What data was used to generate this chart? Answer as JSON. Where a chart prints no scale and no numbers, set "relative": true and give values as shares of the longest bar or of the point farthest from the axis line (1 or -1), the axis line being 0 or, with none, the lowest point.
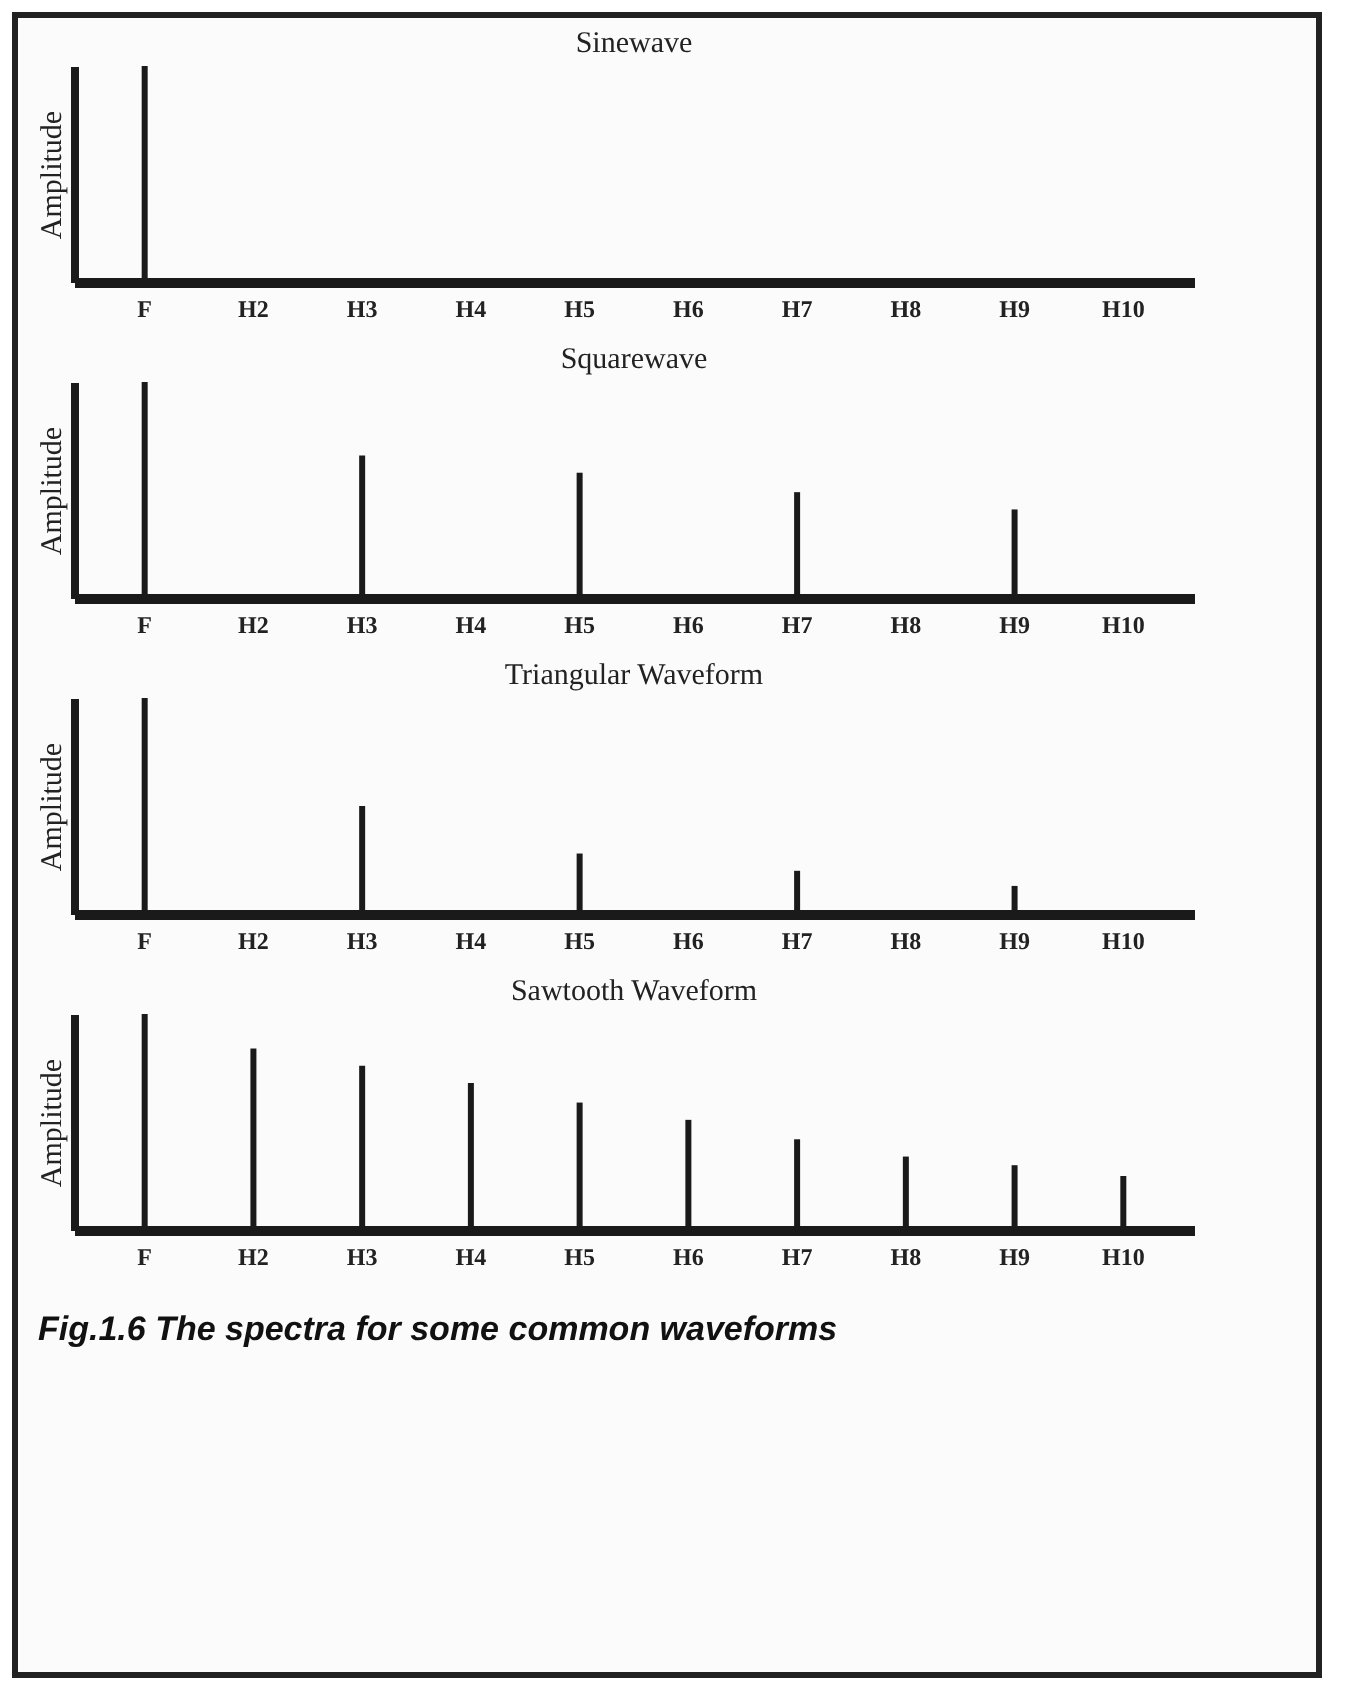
{
  "chart_data": [
    {
      "type": "bar",
      "title": "Sinewave",
      "ylabel": "Amplitude",
      "relative": true,
      "categories": [
        "F",
        "H2",
        "H3",
        "H4",
        "H5",
        "H6",
        "H7",
        "H8",
        "H9",
        "H10"
      ],
      "values": [
        1,
        null,
        null,
        null,
        null,
        null,
        null,
        null,
        null,
        null
      ],
      "color": "#1a1a1a"
    },
    {
      "type": "bar",
      "title": "Squarewave",
      "ylabel": "Amplitude",
      "relative": true,
      "categories": [
        "F",
        "H2",
        "H3",
        "H4",
        "H5",
        "H6",
        "H7",
        "H8",
        "H9",
        "H10"
      ],
      "values": [
        1,
        null,
        0.66,
        null,
        0.58,
        null,
        0.49,
        null,
        0.41,
        null
      ],
      "color": "#1a1a1a"
    },
    {
      "type": "bar",
      "title": "Triangular  Waveform",
      "ylabel": "Amplitude",
      "relative": true,
      "categories": [
        "F",
        "H2",
        "H3",
        "H4",
        "H5",
        "H6",
        "H7",
        "H8",
        "H9",
        "H10"
      ],
      "values": [
        1,
        null,
        0.5,
        null,
        0.28,
        null,
        0.2,
        null,
        0.13,
        null
      ],
      "color": "#1a1a1a"
    },
    {
      "type": "bar",
      "title": "Sawtooth  Waveform",
      "ylabel": "Amplitude",
      "relative": true,
      "categories": [
        "F",
        "H2",
        "H3",
        "H4",
        "H5",
        "H6",
        "H7",
        "H8",
        "H9",
        "H10"
      ],
      "values": [
        1,
        0.84,
        0.76,
        0.68,
        0.59,
        0.51,
        0.42,
        0.34,
        0.3,
        0.25
      ],
      "color": "#1a1a1a",
      "annotations": [
        "Fig.1.6   The spectra for some common waveforms"
      ]
    }
  ]
}
